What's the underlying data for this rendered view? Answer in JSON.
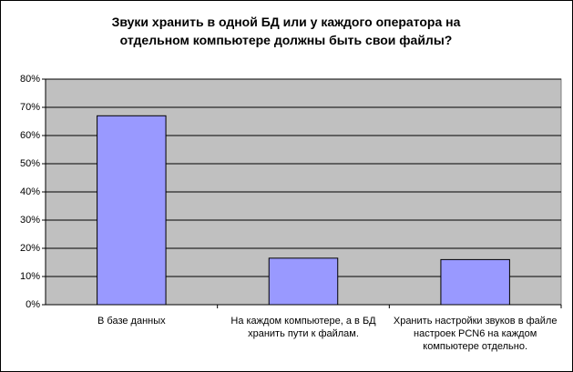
{
  "chart_data": {
    "type": "bar",
    "title": "Звуки хранить в одной БД или у каждого оператора на отдельном компьютере должны быть свои файлы?",
    "categories": [
      "В базе данных",
      "На каждом компьютере, а в БД хранить пути к файлам.",
      "Хранить настройки звуков в файле настроек PCN6 на каждом компьютере отдельно."
    ],
    "values": [
      67,
      16.5,
      16
    ],
    "color": "#9999ff",
    "ylim": [
      0,
      80
    ],
    "yticks": [
      {
        "value": 0,
        "label": "0%"
      },
      {
        "value": 10,
        "label": "10%"
      },
      {
        "value": 20,
        "label": "20%"
      },
      {
        "value": 30,
        "label": "30%"
      },
      {
        "value": 40,
        "label": "40%"
      },
      {
        "value": 50,
        "label": "50%"
      },
      {
        "value": 60,
        "label": "60%"
      },
      {
        "value": 70,
        "label": "70%"
      },
      {
        "value": 80,
        "label": "80%"
      }
    ],
    "grid": true
  }
}
